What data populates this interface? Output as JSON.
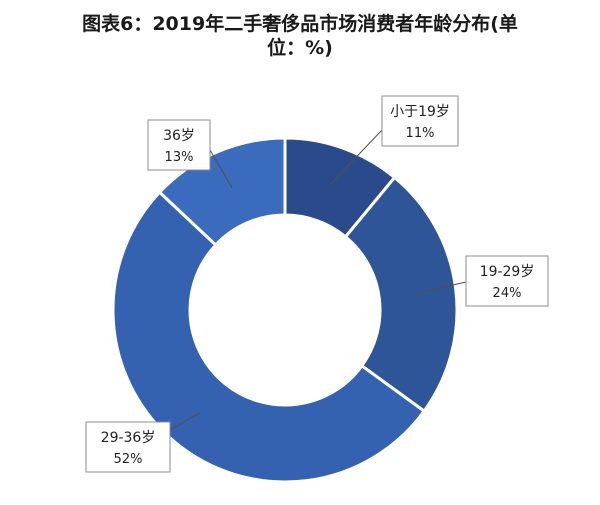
{
  "chart_data": {
    "type": "pie",
    "variant": "donut",
    "title_lines": [
      "图表6：2019年二手奢侈品市场消费者年龄分布(单",
      "位：%)"
    ],
    "unit": "%",
    "slices": [
      {
        "label": "小于19岁",
        "value": 11,
        "value_label": "11%",
        "color": "#2b4a8b"
      },
      {
        "label": "19-29岁",
        "value": 24,
        "value_label": "24%",
        "color": "#2e5597"
      },
      {
        "label": "29-36岁",
        "value": 52,
        "value_label": "52%",
        "color": "#3462b0"
      },
      {
        "label": "36岁",
        "value": 13,
        "value_label": "13%",
        "color": "#3a6bbd"
      }
    ],
    "legend": "none",
    "data_labels": "callout boxes outside ring"
  }
}
